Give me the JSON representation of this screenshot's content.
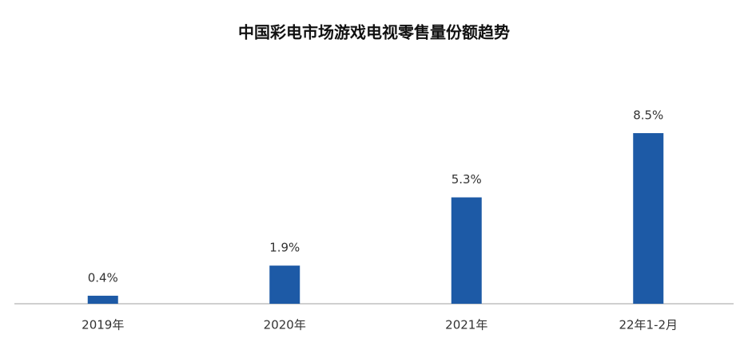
{
  "chart_data": {
    "type": "bar",
    "title": "中国彩电市场游戏电视零售量份额趋势",
    "categories": [
      "2019年",
      "2020年",
      "2021年",
      "22年1-2月"
    ],
    "values": [
      0.4,
      1.9,
      5.3,
      8.5
    ],
    "value_labels": [
      "0.4%",
      "1.9%",
      "5.3%",
      "8.5%"
    ],
    "color": "#1d5aa6"
  }
}
